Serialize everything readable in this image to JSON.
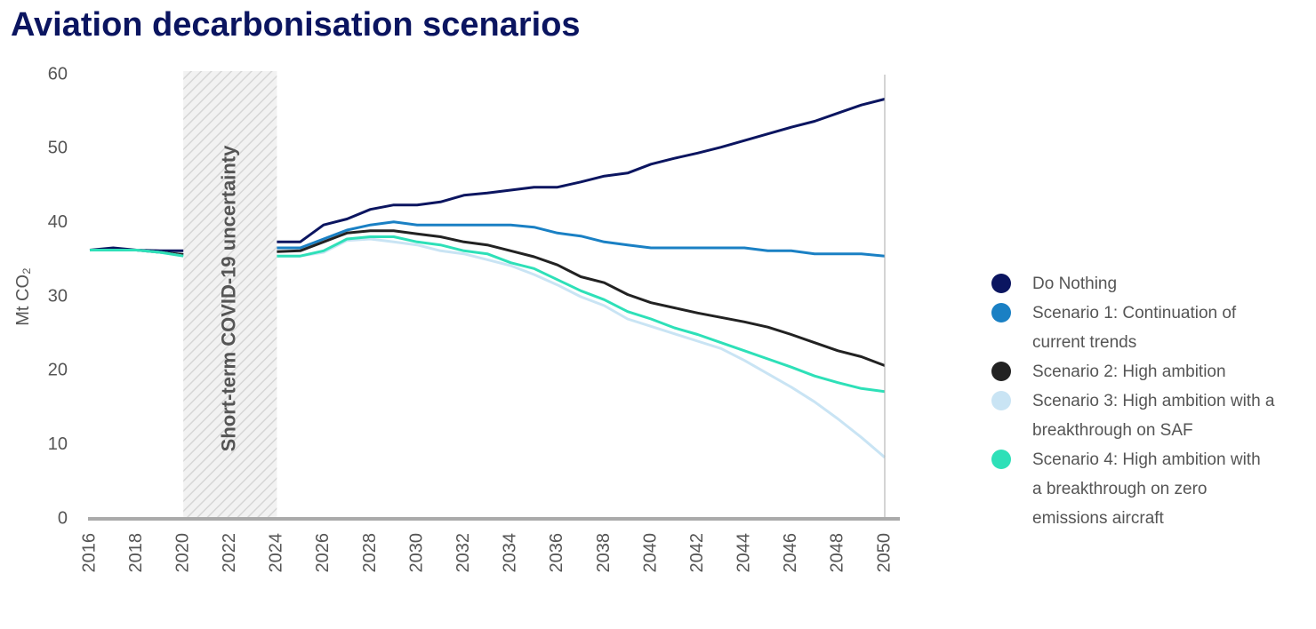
{
  "chart_data": {
    "type": "line",
    "title": "Aviation decarbonisation scenarios",
    "y_label": "Mt CO₂",
    "x": [
      2016,
      2017,
      2018,
      2019,
      2020,
      2021,
      2022,
      2023,
      2024,
      2025,
      2026,
      2027,
      2028,
      2029,
      2030,
      2031,
      2032,
      2033,
      2034,
      2035,
      2036,
      2037,
      2038,
      2039,
      2040,
      2041,
      2042,
      2043,
      2044,
      2045,
      2046,
      2047,
      2048,
      2049,
      2050
    ],
    "series": [
      {
        "name": "Do Nothing",
        "color": "#0b1560",
        "values": [
          36.3,
          36.6,
          36.3,
          36.2,
          36.2,
          null,
          null,
          null,
          37.4,
          37.4,
          39.7,
          40.5,
          41.8,
          42.4,
          42.4,
          42.8,
          43.7,
          44.0,
          44.4,
          44.8,
          44.8,
          45.5,
          46.3,
          46.7,
          47.9,
          48.7,
          49.4,
          50.2,
          51.1,
          52.0,
          52.9,
          53.7,
          54.8,
          55.9,
          56.7
        ]
      },
      {
        "name": "Scenario 1: Continuation of current trends",
        "color": "#1a80c4",
        "values": [
          36.3,
          36.3,
          36.3,
          36.0,
          35.7,
          null,
          null,
          null,
          36.6,
          36.6,
          37.8,
          39.0,
          39.7,
          40.1,
          39.7,
          39.7,
          39.7,
          39.7,
          39.7,
          39.4,
          38.6,
          38.2,
          37.4,
          37.0,
          36.6,
          36.6,
          36.6,
          36.6,
          36.6,
          36.2,
          36.2,
          35.8,
          35.8,
          35.8,
          35.5
        ]
      },
      {
        "name": "Scenario 2: High ambition",
        "color": "#222222",
        "values": [
          36.3,
          36.3,
          36.3,
          36.0,
          35.7,
          null,
          null,
          null,
          36.1,
          36.2,
          37.4,
          38.6,
          38.9,
          38.9,
          38.5,
          38.1,
          37.4,
          37.0,
          36.2,
          35.4,
          34.3,
          32.7,
          31.9,
          30.3,
          29.2,
          28.5,
          27.8,
          27.2,
          26.6,
          25.9,
          24.9,
          23.8,
          22.7,
          21.9,
          20.7
        ]
      },
      {
        "name": "Scenario 3: High ambition with a breakthrough on SAF",
        "color": "#c9e4f4",
        "values": [
          36.3,
          36.3,
          36.3,
          36.0,
          35.5,
          null,
          null,
          null,
          35.5,
          35.5,
          36.0,
          37.6,
          37.8,
          37.4,
          37.0,
          36.2,
          35.8,
          35.0,
          34.2,
          33.0,
          31.6,
          30.0,
          28.8,
          27.0,
          26.0,
          25.0,
          24.0,
          23.0,
          21.4,
          19.6,
          17.8,
          15.8,
          13.5,
          11.0,
          8.3
        ]
      },
      {
        "name": "Scenario 4: High ambition with a breakthrough on zero emissions aircraft",
        "color": "#2ee0b8",
        "values": [
          36.3,
          36.3,
          36.3,
          36.0,
          35.5,
          null,
          null,
          null,
          35.5,
          35.5,
          36.2,
          37.8,
          38.1,
          38.1,
          37.4,
          37.0,
          36.2,
          35.8,
          34.6,
          33.8,
          32.3,
          30.8,
          29.6,
          28.0,
          27.0,
          25.8,
          24.9,
          23.8,
          22.7,
          21.6,
          20.5,
          19.3,
          18.4,
          17.6,
          17.2
        ]
      }
    ],
    "shaded_region": {
      "from": 2020,
      "to": 2024,
      "label": "Short-term COVID-19 uncertainty"
    },
    "xlim": [
      2016,
      2050
    ],
    "xticks": [
      2016,
      2018,
      2020,
      2022,
      2024,
      2026,
      2028,
      2030,
      2032,
      2034,
      2036,
      2038,
      2040,
      2042,
      2044,
      2046,
      2048,
      2050
    ],
    "ylim": [
      0,
      60
    ],
    "yticks": [
      0,
      10,
      20,
      30,
      40,
      50,
      60
    ],
    "legend": "right"
  }
}
